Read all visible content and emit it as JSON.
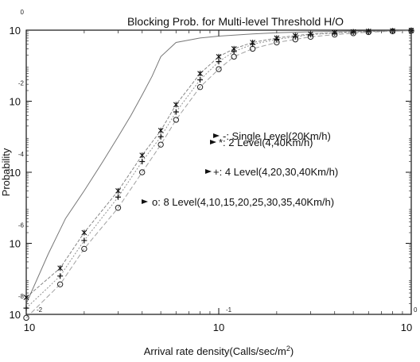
{
  "chart_data": {
    "type": "line",
    "title": "Blocking Prob. for Multi-level Threshold H/O",
    "xlabel": "Arrival rate density(Calls/sec/m",
    "xlabel_sup": "2",
    "xlabel_end": ")",
    "ylabel": "Probability",
    "xscale": "log",
    "yscale": "log",
    "xlim": [
      0.01,
      1
    ],
    "ylim": [
      1e-08,
      1
    ],
    "x_ticks": [
      {
        "value": 0.01,
        "base": "10",
        "exp": "-2"
      },
      {
        "value": 0.1,
        "base": "10",
        "exp": "-1"
      },
      {
        "value": 1,
        "base": "10",
        "exp": "0"
      }
    ],
    "y_ticks": [
      {
        "value": 1e-08,
        "base": "10",
        "exp": "-8"
      },
      {
        "value": 1e-06,
        "base": "10",
        "exp": "-6"
      },
      {
        "value": 0.0001,
        "base": "10",
        "exp": "-4"
      },
      {
        "value": 0.01,
        "base": "10",
        "exp": "-2"
      },
      {
        "value": 1,
        "base": "10",
        "exp": "0"
      }
    ],
    "legend_position": "center-right",
    "series": [
      {
        "name": "-: Single Level(20Km/h)",
        "marker": "line",
        "x": [
          0.01,
          0.013,
          0.016,
          0.02,
          0.025,
          0.03,
          0.035,
          0.04,
          0.045,
          0.05,
          0.06,
          0.08,
          0.1,
          0.15,
          0.2,
          0.3,
          0.5,
          1.0
        ],
        "y": [
          2e-08,
          5e-07,
          5e-06,
          3e-05,
          0.0002,
          0.001,
          0.004,
          0.015,
          0.05,
          0.18,
          0.45,
          0.6,
          0.68,
          0.78,
          0.85,
          0.9,
          0.95,
          0.99
        ]
      },
      {
        "name": "*: 2 Level(4,40Km/h)",
        "marker": "star",
        "x": [
          0.01,
          0.015,
          0.02,
          0.03,
          0.04,
          0.05,
          0.06,
          0.08,
          0.1,
          0.12,
          0.15,
          0.2,
          0.25,
          0.3,
          0.4,
          0.5,
          0.6,
          0.8,
          1.0
        ],
        "y": [
          3e-08,
          2e-07,
          2e-06,
          3e-05,
          0.0003,
          0.0015,
          0.008,
          0.06,
          0.18,
          0.3,
          0.45,
          0.6,
          0.7,
          0.78,
          0.85,
          0.9,
          0.93,
          0.96,
          0.98
        ]
      },
      {
        "name": "+: 4 Level(4,20,30,40Km/h)",
        "marker": "plus",
        "x": [
          0.01,
          0.015,
          0.02,
          0.03,
          0.04,
          0.05,
          0.06,
          0.08,
          0.1,
          0.12,
          0.15,
          0.2,
          0.25,
          0.3,
          0.4,
          0.5,
          0.6,
          0.8,
          1.0
        ],
        "y": [
          1.5e-08,
          1.2e-07,
          1.2e-06,
          2e-05,
          0.0002,
          0.001,
          0.005,
          0.04,
          0.13,
          0.25,
          0.4,
          0.55,
          0.65,
          0.75,
          0.83,
          0.88,
          0.92,
          0.95,
          0.98
        ]
      },
      {
        "name": "o: 8 Level(4,10,15,20,25,30,35,40Km/h)",
        "marker": "circle",
        "x": [
          0.01,
          0.015,
          0.02,
          0.03,
          0.04,
          0.05,
          0.06,
          0.08,
          0.1,
          0.12,
          0.15,
          0.2,
          0.25,
          0.3,
          0.4,
          0.5,
          0.6,
          0.8,
          1.0
        ],
        "y": [
          8e-09,
          7e-08,
          7e-07,
          1e-05,
          0.0001,
          0.0006,
          0.003,
          0.025,
          0.08,
          0.18,
          0.3,
          0.45,
          0.55,
          0.65,
          0.75,
          0.82,
          0.88,
          0.93,
          0.97
        ]
      }
    ]
  }
}
